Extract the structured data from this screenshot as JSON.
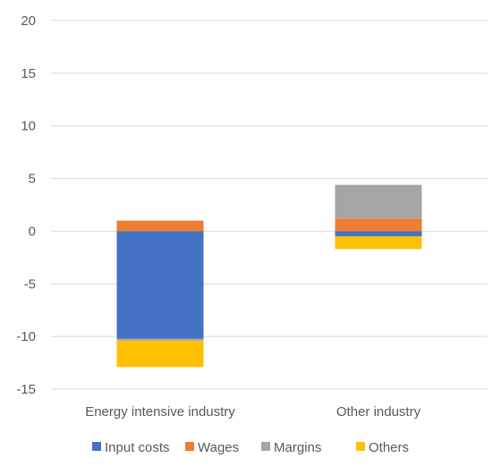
{
  "chart_data": {
    "type": "bar",
    "stacked": true,
    "title": "",
    "xlabel": "",
    "ylabel": "",
    "categories": [
      "Energy intensive industry",
      "Other industry"
    ],
    "ylim": [
      -15,
      20
    ],
    "yticks": [
      20,
      15,
      10,
      5,
      0,
      -5,
      -10,
      -15
    ],
    "grid": true,
    "legend_position": "bottom",
    "series": [
      {
        "name": "Input costs",
        "color": "#4472C4",
        "values": [
          -10.2,
          -0.5
        ]
      },
      {
        "name": "Wages",
        "color": "#ED7D31",
        "values": [
          1.0,
          1.2
        ]
      },
      {
        "name": "Margins",
        "color": "#A5A5A5",
        "values": [
          -0.2,
          3.2
        ]
      },
      {
        "name": "Others",
        "color": "#FFC000",
        "values": [
          -2.5,
          -1.2
        ]
      }
    ]
  }
}
